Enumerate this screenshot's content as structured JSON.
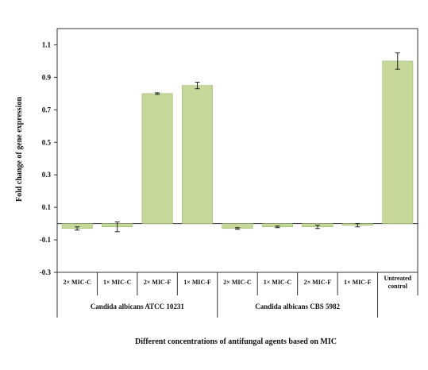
{
  "chart_data": {
    "type": "bar",
    "title": "",
    "ylabel": "Fold change of gene expression",
    "xlabel": "Different concentrations of antifungal agents based on MIC",
    "ylim": [
      -0.3,
      1.2
    ],
    "yticks": [
      "1.1",
      "0.9",
      "0.7",
      "0.5",
      "0.3",
      "0.1",
      "-0.1",
      "-0.3"
    ],
    "categories": [
      [
        "2× MIC-C"
      ],
      [
        "1× MIC-C"
      ],
      [
        "2× MIC-F"
      ],
      [
        "1× MIC-F"
      ],
      [
        "2× MIC-C"
      ],
      [
        "1× MIC-C"
      ],
      [
        "2× MIC-F"
      ],
      [
        "1× MIC-F"
      ],
      [
        "Untreated",
        "control"
      ]
    ],
    "values": [
      -0.03,
      -0.02,
      0.8,
      0.85,
      -0.03,
      -0.02,
      -0.02,
      -0.01,
      1.0
    ],
    "errors": [
      0.01,
      0.03,
      0.005,
      0.02,
      0.005,
      0.005,
      0.01,
      0.01,
      0.05
    ],
    "groups": [
      {
        "label": "Candida albicans ATCC 10231"
      },
      {
        "label": "Candida albicans CBS 5982"
      }
    ],
    "bar_color": "#c5d89a",
    "bar_stroke": "#9fb870",
    "grid": false,
    "legend": "none"
  }
}
